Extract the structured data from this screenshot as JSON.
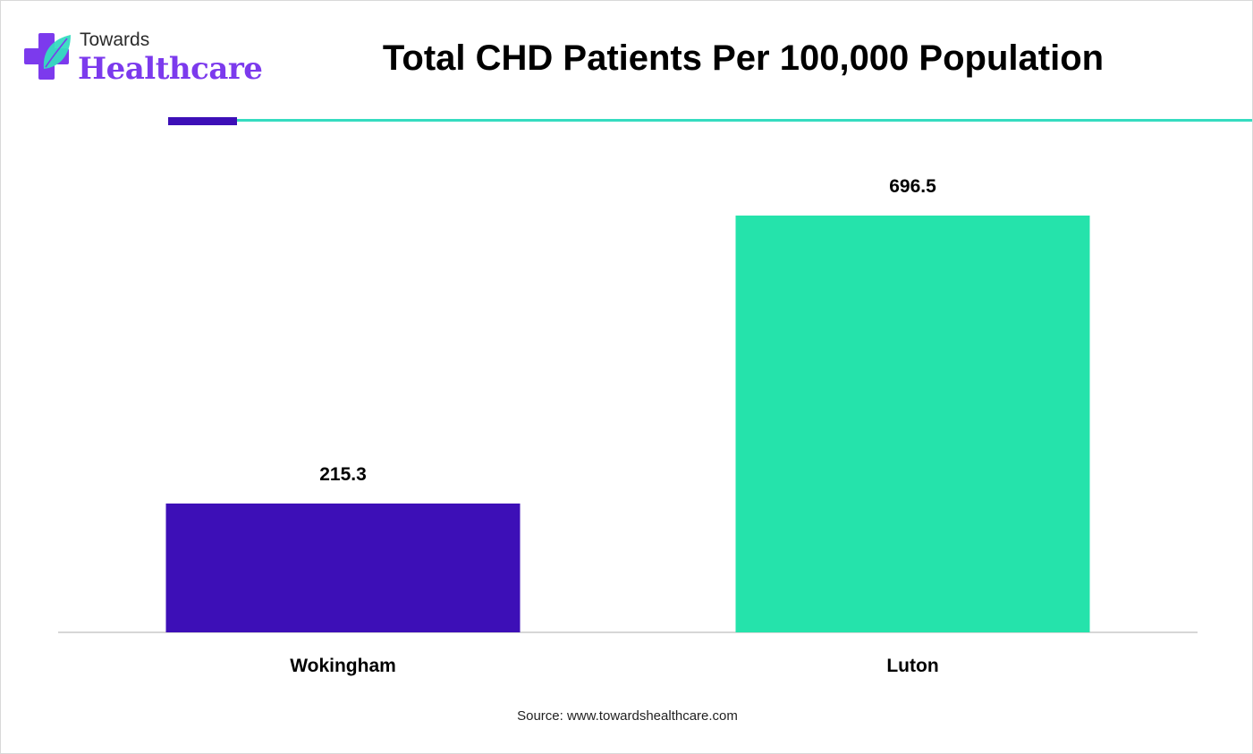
{
  "logo": {
    "line1": "Towards",
    "line2": "Healthcare"
  },
  "chart_data": {
    "type": "bar",
    "title": "Total CHD Patients Per 100,000 Population",
    "categories": [
      "Wokingham",
      "Luton"
    ],
    "values": [
      215.3,
      696.5
    ],
    "colors": [
      "#3d0fb7",
      "#25e3ab"
    ],
    "ylim": [
      0,
      720
    ],
    "grid": false,
    "legend": "none"
  },
  "source": "Source: www.towardshealthcare.com",
  "colors": {
    "accent_purple": "#3d0fb7",
    "accent_teal": "#35dcc0",
    "logo_purple": "#7c3aed"
  }
}
